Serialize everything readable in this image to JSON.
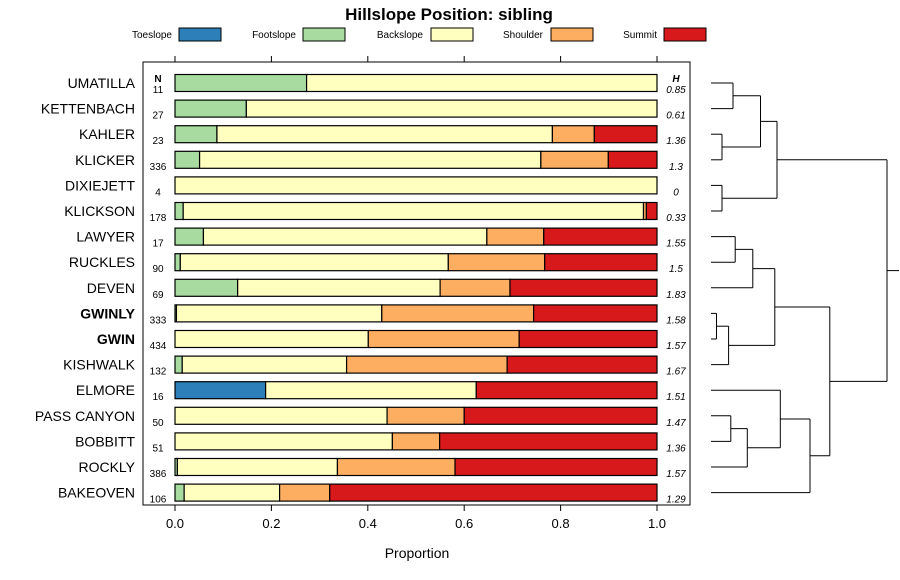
{
  "chart_data": {
    "type": "bar",
    "stacked": true,
    "orientation": "horizontal",
    "title": "Hillslope Position: sibling",
    "xlabel": "Proportion",
    "ylabel": "",
    "xlim": [
      0,
      1
    ],
    "xticks": [
      0.0,
      0.2,
      0.4,
      0.6,
      0.8,
      1.0
    ],
    "xtick_labels": [
      "0.0",
      "0.2",
      "0.4",
      "0.6",
      "0.8",
      "1.0"
    ],
    "legend_position": "top",
    "n_header": "N",
    "h_header": "H",
    "series": [
      {
        "name": "Toeslope",
        "color": "#2c7fb8"
      },
      {
        "name": "Footslope",
        "color": "#a8dba0"
      },
      {
        "name": "Backslope",
        "color": "#ffffbf"
      },
      {
        "name": "Shoulder",
        "color": "#fdae61"
      },
      {
        "name": "Summit",
        "color": "#d7191c"
      }
    ],
    "rows": [
      {
        "label": "UMATILLA",
        "bold": false,
        "n": "11",
        "h": "0.85",
        "values": [
          0,
          0.273,
          0.727,
          0,
          0
        ]
      },
      {
        "label": "KETTENBACH",
        "bold": false,
        "n": "27",
        "h": "0.61",
        "values": [
          0,
          0.148,
          0.852,
          0,
          0
        ]
      },
      {
        "label": "KAHLER",
        "bold": false,
        "n": "23",
        "h": "1.36",
        "values": [
          0,
          0.087,
          0.696,
          0.087,
          0.13
        ]
      },
      {
        "label": "KLICKER",
        "bold": false,
        "n": "336",
        "h": "1.3",
        "values": [
          0,
          0.051,
          0.708,
          0.14,
          0.101
        ]
      },
      {
        "label": "DIXIEJETT",
        "bold": false,
        "n": "4",
        "h": "0",
        "values": [
          0,
          0,
          1.0,
          0,
          0
        ]
      },
      {
        "label": "KLICKSON",
        "bold": false,
        "n": "178",
        "h": "0.33",
        "values": [
          0,
          0.017,
          0.955,
          0.006,
          0.022
        ]
      },
      {
        "label": "LAWYER",
        "bold": false,
        "n": "17",
        "h": "1.55",
        "values": [
          0,
          0.059,
          0.588,
          0.118,
          0.235
        ]
      },
      {
        "label": "RUCKLES",
        "bold": false,
        "n": "90",
        "h": "1.5",
        "values": [
          0,
          0.011,
          0.556,
          0.2,
          0.233
        ]
      },
      {
        "label": "DEVEN",
        "bold": false,
        "n": "69",
        "h": "1.83",
        "values": [
          0,
          0.13,
          0.42,
          0.145,
          0.305
        ]
      },
      {
        "label": "GWINLY",
        "bold": true,
        "n": "333",
        "h": "1.58",
        "values": [
          0,
          0.003,
          0.426,
          0.315,
          0.256
        ]
      },
      {
        "label": "GWIN",
        "bold": true,
        "n": "434",
        "h": "1.57",
        "values": [
          0,
          0,
          0.401,
          0.313,
          0.286
        ]
      },
      {
        "label": "KISHWALK",
        "bold": false,
        "n": "132",
        "h": "1.67",
        "values": [
          0,
          0.015,
          0.341,
          0.333,
          0.311
        ]
      },
      {
        "label": "ELMORE",
        "bold": false,
        "n": "16",
        "h": "1.51",
        "values": [
          0.188,
          0,
          0.437,
          0,
          0.375
        ]
      },
      {
        "label": "PASS CANYON",
        "bold": false,
        "n": "50",
        "h": "1.47",
        "values": [
          0,
          0,
          0.44,
          0.16,
          0.4
        ]
      },
      {
        "label": "BOBBITT",
        "bold": false,
        "n": "51",
        "h": "1.36",
        "values": [
          0,
          0,
          0.451,
          0.098,
          0.451
        ]
      },
      {
        "label": "ROCKLY",
        "bold": false,
        "n": "386",
        "h": "1.57",
        "values": [
          0,
          0.005,
          0.332,
          0.244,
          0.419
        ]
      },
      {
        "label": "BAKEOVEN",
        "bold": false,
        "n": "106",
        "h": "1.29",
        "values": [
          0,
          0.019,
          0.198,
          0.104,
          0.679
        ]
      }
    ],
    "dendrogram": {
      "description": "hierarchical clustering of rows",
      "leaf_order": [
        "UMATILLA",
        "KETTENBACH",
        "KAHLER",
        "KLICKER",
        "DIXIEJETT",
        "KLICKSON",
        "LAWYER",
        "RUCKLES",
        "DEVEN",
        "GWINLY",
        "GWIN",
        "KISHWALK",
        "ELMORE",
        "PASS CANYON",
        "BOBBITT",
        "ROCKLY",
        "BAKEOVEN"
      ],
      "merges": [
        {
          "a": "UMATILLA",
          "b": "KETTENBACH",
          "height": 0.2
        },
        {
          "a": "KAHLER",
          "b": "KLICKER",
          "height": 0.1
        },
        {
          "a": [
            0
          ],
          "b": [
            1
          ],
          "height": 0.45
        },
        {
          "a": "DIXIEJETT",
          "b": "KLICKSON",
          "height": 0.1
        },
        {
          "a": [
            2
          ],
          "b": [
            3
          ],
          "height": 0.6
        },
        {
          "a": "LAWYER",
          "b": "RUCKLES",
          "height": 0.22
        },
        {
          "a": [
            5
          ],
          "b": "DEVEN",
          "height": 0.38
        },
        {
          "a": "GWINLY",
          "b": "GWIN",
          "height": 0.05
        },
        {
          "a": [
            7
          ],
          "b": "KISHWALK",
          "height": 0.16
        },
        {
          "a": [
            6
          ],
          "b": [
            8
          ],
          "height": 0.58
        },
        {
          "a": "PASS CANYON",
          "b": "BOBBITT",
          "height": 0.18
        },
        {
          "a": [
            10
          ],
          "b": "ROCKLY",
          "height": 0.33
        },
        {
          "a": "ELMORE",
          "b": [
            11
          ],
          "height": 0.63
        },
        {
          "a": [
            12
          ],
          "b": "BAKEOVEN",
          "height": 0.9
        },
        {
          "a": [
            9
          ],
          "b": [
            13
          ],
          "height": 1.08
        },
        {
          "a": [
            4
          ],
          "b": [
            14
          ],
          "height": 1.6
        }
      ]
    }
  }
}
